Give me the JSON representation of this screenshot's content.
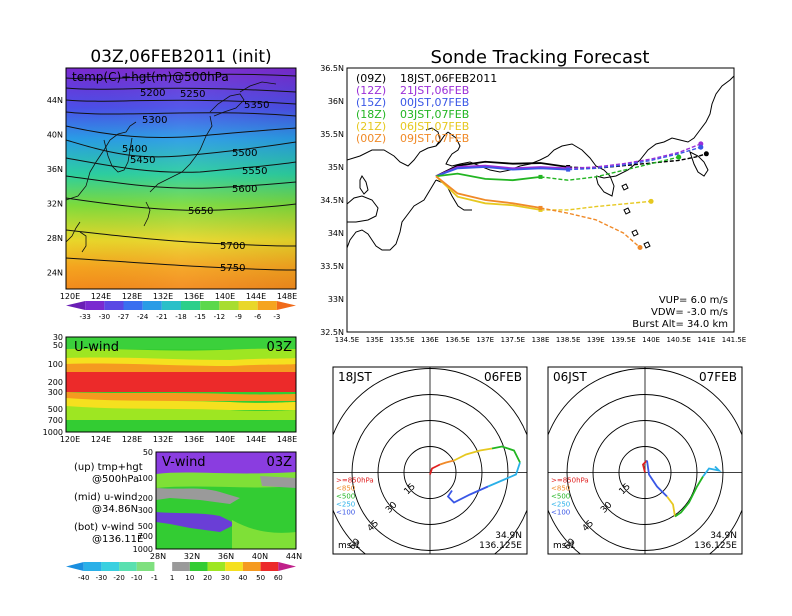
{
  "left": {
    "title": "03Z,06FEB2011 (init)",
    "map_label": "temp(C)+hgt(m)@500hPa",
    "lat_ticks": [
      "44N",
      "40N",
      "36N",
      "32N",
      "28N",
      "24N"
    ],
    "lon_ticks": [
      "120E",
      "124E",
      "128E",
      "132E",
      "136E",
      "140E",
      "144E",
      "148E"
    ],
    "contours": [
      "5200",
      "5250",
      "5300",
      "5350",
      "5400",
      "5450",
      "5500",
      "5550",
      "5600",
      "5650",
      "5700",
      "5750"
    ],
    "temp_colorbar": [
      "-33",
      "-30",
      "-27",
      "-24",
      "-21",
      "-18",
      "-15",
      "-12",
      "-9",
      "-6",
      "-3"
    ],
    "uwind": {
      "label": "U-wind",
      "time": "03Z",
      "y_ticks": [
        "30",
        "50",
        "100",
        "200",
        "300",
        "500",
        "700",
        "1000"
      ],
      "x_ticks": [
        "120E",
        "124E",
        "128E",
        "132E",
        "136E",
        "140E",
        "144E",
        "148E"
      ]
    },
    "vwind": {
      "label": "V-wind",
      "time": "03Z",
      "y_ticks": [
        "50",
        "100",
        "200",
        "300",
        "500",
        "700",
        "1000"
      ],
      "x_ticks": [
        "28N",
        "32N",
        "36N",
        "40N",
        "44N"
      ]
    },
    "legend": {
      "up": "(up) tmp+hgt",
      "up2": "@500hPa",
      "mid": "(mid) u-wind",
      "mid2": "@34.86N",
      "bot": "(bot) v-wind",
      "bot2": "@136.11E"
    },
    "wind_colorbar": [
      "-40",
      "-30",
      "-20",
      "-10",
      "-1",
      "1",
      "10",
      "20",
      "30",
      "40",
      "50",
      "60"
    ]
  },
  "right": {
    "title": "Sonde Tracking Forecast",
    "lat_ticks": [
      "36.5N",
      "36N",
      "35.5N",
      "35N",
      "34.5N",
      "34N",
      "33.5N",
      "33N",
      "32.5N"
    ],
    "lon_ticks": [
      "134.5E",
      "135E",
      "135.5E",
      "136E",
      "136.5E",
      "137E",
      "137.5E",
      "138E",
      "138.5E",
      "139E",
      "139.5E",
      "140E",
      "140.5E",
      "141E",
      "141.5E"
    ],
    "legend": [
      {
        "run": "(09Z)",
        "time": "18JST,06FEB2011",
        "color": "#000000"
      },
      {
        "run": "(12Z)",
        "time": "21JST,06FEB",
        "color": "#9b2fd8"
      },
      {
        "run": "(15Z)",
        "time": "00JST,07FEB",
        "color": "#3a57e6"
      },
      {
        "run": "(18Z)",
        "time": "03JST,07FEB",
        "color": "#22b522"
      },
      {
        "run": "(21Z)",
        "time": "06JST,07FEB",
        "color": "#e6c820"
      },
      {
        "run": "(00Z)",
        "time": "09JST,07FEB",
        "color": "#f08a28"
      }
    ],
    "params": {
      "vup": "VUP=  6.0 m/s",
      "vdw": "VDW= -3.0 m/s",
      "burst": "Burst Alt= 34.0 km"
    }
  },
  "hodographs": [
    {
      "left_label": "18JST",
      "right_label": "06FEB",
      "lat": "34.9N",
      "lon": "136.125E",
      "unit": "ms-1",
      "ring_labels": [
        "15",
        "30",
        "45",
        "60"
      ],
      "levels": [
        ">=850hPa",
        "<850",
        "<500",
        "<250",
        "<100"
      ]
    },
    {
      "left_label": "06JST",
      "right_label": "07FEB",
      "lat": "34.9N",
      "lon": "136.125E",
      "unit": "ms-1",
      "ring_labels": [
        "15",
        "30",
        "45",
        "60"
      ],
      "levels": [
        ">=850hPa",
        "<850",
        "<500",
        "<250",
        "<100"
      ]
    }
  ],
  "chart_data": [
    {
      "type": "heatmap",
      "title": "03Z,06FEB2011 (init)",
      "variable": "temp(C)+hgt(m)@500hPa",
      "xlim": [
        120,
        150
      ],
      "ylim": [
        22,
        47
      ],
      "contour_levels": [
        5200,
        5250,
        5300,
        5350,
        5400,
        5450,
        5500,
        5550,
        5600,
        5650,
        5700,
        5750
      ],
      "colorbar": [
        -33,
        -30,
        -27,
        -24,
        -21,
        -18,
        -15,
        -12,
        -9,
        -6,
        -3
      ]
    },
    {
      "type": "heatmap",
      "title": "U-wind",
      "xlim": [
        120,
        150
      ],
      "ylim_hPa": [
        1000,
        30
      ]
    },
    {
      "type": "heatmap",
      "title": "V-wind",
      "xlim": [
        28,
        44
      ],
      "ylim_hPa": [
        1000,
        30
      ]
    },
    {
      "type": "line",
      "title": "Sonde Tracking Forecast",
      "xlim": [
        134.5,
        141.5
      ],
      "ylim": [
        32.5,
        36.5
      ],
      "series": [
        {
          "name": "(09Z) 18JST,06FEB2011",
          "color": "#000000",
          "x": [
            136.11,
            136.5,
            137.0,
            137.5,
            138.0,
            138.5,
            139.0,
            139.5,
            140.0,
            140.5,
            140.8,
            141.0
          ],
          "y": [
            34.86,
            35.02,
            35.08,
            35.05,
            35.06,
            35.0,
            34.98,
            35.02,
            35.06,
            35.1,
            35.15,
            35.2
          ]
        },
        {
          "name": "(12Z) 21JST,06FEB",
          "color": "#9b2fd8",
          "x": [
            136.11,
            136.5,
            137.0,
            137.5,
            138.0,
            138.5,
            139.0,
            139.5,
            140.0,
            140.5,
            140.9
          ],
          "y": [
            34.86,
            35.0,
            35.02,
            34.98,
            35.0,
            34.98,
            35.0,
            35.05,
            35.12,
            35.22,
            35.35
          ]
        },
        {
          "name": "(15Z) 00JST,07FEB",
          "color": "#3a57e6",
          "x": [
            136.11,
            136.5,
            137.0,
            137.5,
            138.0,
            138.5,
            139.0,
            139.5,
            140.0,
            140.5,
            140.9
          ],
          "y": [
            34.86,
            34.98,
            35.0,
            34.96,
            34.98,
            34.96,
            34.98,
            35.03,
            35.1,
            35.2,
            35.3
          ]
        },
        {
          "name": "(18Z) 03JST,07FEB",
          "color": "#22b522",
          "x": [
            136.11,
            136.5,
            137.0,
            137.5,
            138.0,
            138.5,
            139.0,
            139.5,
            140.0,
            140.5
          ],
          "y": [
            34.86,
            34.9,
            34.82,
            34.8,
            34.85,
            34.8,
            34.85,
            34.95,
            35.05,
            35.15
          ]
        },
        {
          "name": "(21Z) 06JST,07FEB",
          "color": "#e6c820",
          "x": [
            136.11,
            136.5,
            137.0,
            137.5,
            138.0,
            138.5,
            139.0,
            139.5,
            140.0
          ],
          "y": [
            34.86,
            34.55,
            34.45,
            34.42,
            34.35,
            34.35,
            34.4,
            34.44,
            34.48
          ]
        },
        {
          "name": "(00Z) 09JST,07FEB",
          "color": "#f08a28",
          "x": [
            136.11,
            136.5,
            137.0,
            137.5,
            138.0,
            138.5,
            139.0,
            139.5,
            139.8
          ],
          "y": [
            34.86,
            34.6,
            34.5,
            34.45,
            34.38,
            34.3,
            34.2,
            34.0,
            33.78
          ]
        }
      ]
    }
  ]
}
